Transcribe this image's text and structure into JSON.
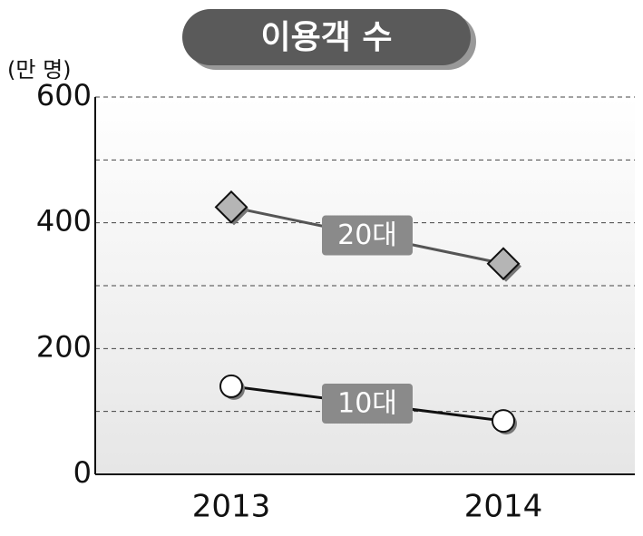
{
  "chart_data": {
    "type": "line",
    "title": "이용객 수",
    "y_unit_label": "(만 명)",
    "categories": [
      "2013",
      "2014"
    ],
    "series": [
      {
        "name": "20대",
        "color": "#555555",
        "marker": "diamond",
        "marker_color": "#b5b5b5",
        "values": [
          425,
          335
        ]
      },
      {
        "name": "10대",
        "color": "#111111",
        "marker": "circle",
        "marker_color": "#ffffff",
        "values": [
          140,
          85
        ]
      }
    ],
    "ylim": [
      0,
      600
    ],
    "yticks": [
      0,
      200,
      400,
      600
    ],
    "minor_yticks": [
      100,
      300,
      500
    ],
    "grid": true
  }
}
